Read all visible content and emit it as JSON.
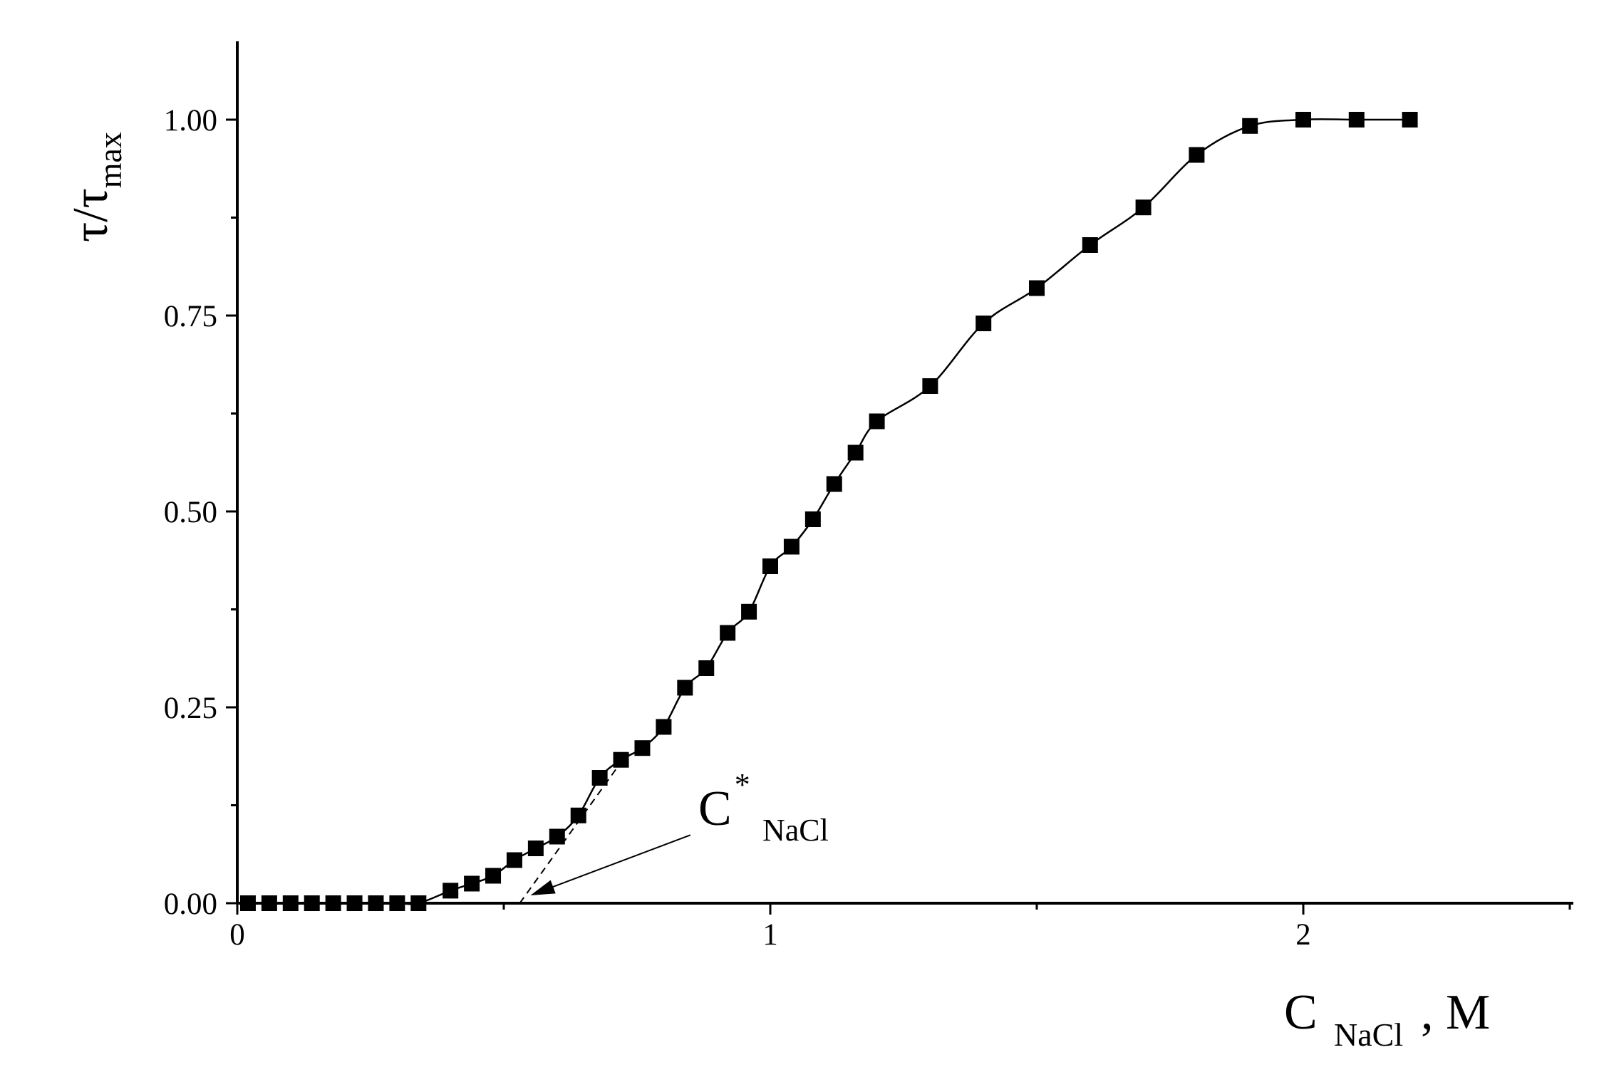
{
  "chart_data": {
    "type": "scatter",
    "title": "",
    "xlabel": {
      "main": "C",
      "sub": "NaCl",
      "suffix": ", M"
    },
    "ylabel": {
      "main": "τ/τ",
      "sub": "max"
    },
    "xlim": [
      0,
      2.5
    ],
    "ylim": [
      0,
      1.1
    ],
    "x_ticks": [
      "0",
      "1",
      "2"
    ],
    "x_tick_values": [
      0,
      1,
      2
    ],
    "y_ticks": [
      "0.00",
      "0.25",
      "0.50",
      "0.75",
      "1.00"
    ],
    "y_tick_values": [
      0,
      0.25,
      0.5,
      0.75,
      1.0
    ],
    "grid": false,
    "marker": "filled-square",
    "series": [
      {
        "x": [
          0.02,
          0.06,
          0.1,
          0.14,
          0.18,
          0.22,
          0.26,
          0.3,
          0.34,
          0.4,
          0.44,
          0.48,
          0.52,
          0.56,
          0.6,
          0.64,
          0.68,
          0.72,
          0.76,
          0.8,
          0.84,
          0.88,
          0.92,
          0.96,
          1.0,
          1.04,
          1.08,
          1.12,
          1.16,
          1.2,
          1.3,
          1.4,
          1.5,
          1.6,
          1.7,
          1.8,
          1.9,
          2.0,
          2.1,
          2.2
        ],
        "values": [
          0,
          0,
          0,
          0,
          0,
          0,
          0,
          0,
          0,
          0.016,
          0.025,
          0.035,
          0.055,
          0.07,
          0.085,
          0.112,
          0.16,
          0.183,
          0.198,
          0.225,
          0.275,
          0.3,
          0.345,
          0.372,
          0.43,
          0.455,
          0.49,
          0.535,
          0.575,
          0.615,
          0.66,
          0.74,
          0.785,
          0.84,
          0.888,
          0.955,
          0.992,
          1.0,
          1.0,
          1.0
        ]
      }
    ],
    "fit_line": "smooth line through points",
    "annotations": [
      {
        "text_main": "C",
        "text_sup": "*",
        "text_sub": "NaCl",
        "tangent_from": [
          0.53,
          0
        ],
        "tangent_to": [
          0.72,
          0.18
        ],
        "arrow_from": [
          0.85,
          0.087
        ],
        "arrow_to": [
          0.55,
          0.01
        ]
      }
    ]
  }
}
